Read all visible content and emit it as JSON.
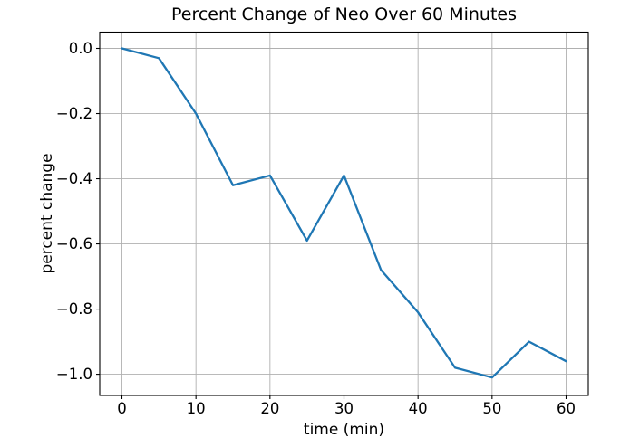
{
  "figure": {
    "background_color": "#ffffff"
  },
  "chart_data": {
    "type": "line",
    "title": "Percent Change of Neo Over 60 Minutes",
    "xlabel": "time (min)",
    "ylabel": "percent change",
    "x": [
      0,
      5,
      10,
      15,
      20,
      25,
      30,
      35,
      40,
      45,
      50,
      55,
      60
    ],
    "values": [
      0.0,
      -0.03,
      -0.2,
      -0.42,
      -0.39,
      -0.59,
      -0.39,
      -0.68,
      -0.81,
      -0.98,
      -1.01,
      -0.9,
      -0.96
    ],
    "xlim": [
      -3,
      63
    ],
    "ylim": [
      -1.065,
      0.05
    ],
    "xticks": [
      0,
      10,
      20,
      30,
      40,
      50,
      60
    ],
    "xticklabels": [
      "0",
      "10",
      "20",
      "30",
      "40",
      "50",
      "60"
    ],
    "yticks": [
      0.0,
      -0.2,
      -0.4,
      -0.6,
      -0.8,
      -1.0
    ],
    "yticklabels": [
      "0.0",
      "−0.2",
      "−0.4",
      "−0.6",
      "−0.8",
      "−1.0"
    ],
    "grid": true,
    "legend_position": "none",
    "colors": {
      "line": "#1f77b4",
      "grid": "#b0b0b0",
      "spine": "#000000",
      "text": "#000000",
      "background": "#ffffff"
    }
  }
}
